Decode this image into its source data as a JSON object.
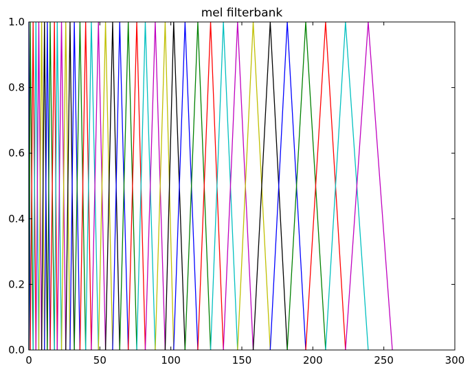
{
  "chart_data": {
    "type": "line",
    "title": "mel filterbank",
    "xlabel": "",
    "ylabel": "",
    "xlim": [
      0,
      300
    ],
    "ylim": [
      0,
      1
    ],
    "x_ticks": [
      "0",
      "50",
      "100",
      "150",
      "200",
      "250",
      "300"
    ],
    "y_ticks": [
      "0.0",
      "0.2",
      "0.4",
      "0.6",
      "0.8",
      "1.0"
    ],
    "grid": false,
    "legend": "none",
    "color_cycle": [
      "#0000ff",
      "#008000",
      "#ff0000",
      "#00bfbf",
      "#bf00bf",
      "#bfbf00",
      "#000000"
    ],
    "filter_peaks": [
      0,
      1,
      3,
      5,
      7,
      9,
      11,
      13,
      15,
      18,
      20,
      23,
      26,
      29,
      32,
      36,
      40,
      44,
      49,
      54,
      59,
      64,
      70,
      76,
      82,
      89,
      96,
      102,
      110,
      119,
      128,
      137,
      147,
      158,
      170,
      182,
      195,
      209,
      223,
      239
    ],
    "last_filter_end": 256,
    "series_note": ""
  }
}
